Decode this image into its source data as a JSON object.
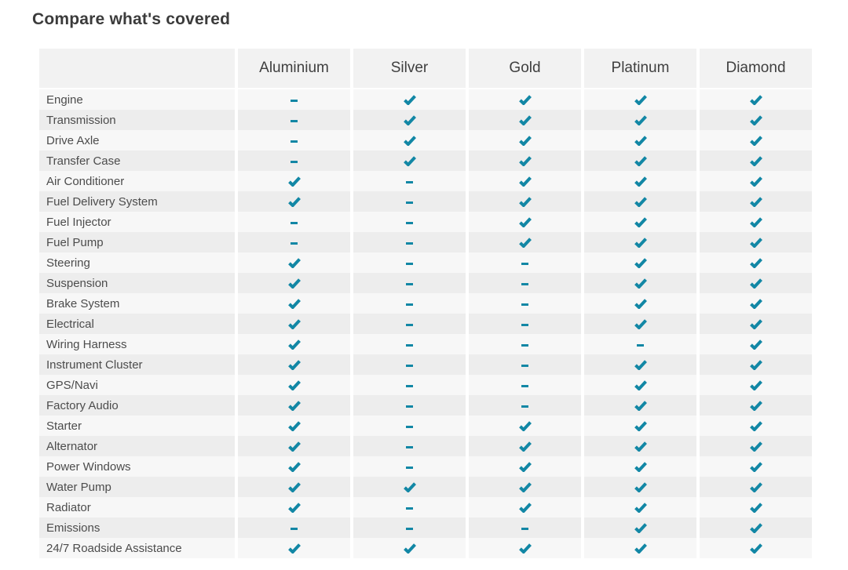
{
  "title": "Compare what's covered",
  "colors": {
    "accent_check": "#1287a5",
    "header_bg": "#f2f2f2",
    "row_odd_bg": "#f7f7f7",
    "row_even_bg": "#ededed",
    "title_text": "#3b3b3b",
    "header_text": "#3f3f3f",
    "label_text": "#4c4c4c"
  },
  "table": {
    "corner_header": "",
    "columns": [
      "Aluminium",
      "Silver",
      "Gold",
      "Platinum",
      "Diamond"
    ],
    "icons": {
      "covered": "check-icon",
      "not_covered": "dash-icon"
    },
    "rows": [
      {
        "label": "Engine",
        "covered": [
          false,
          true,
          true,
          true,
          true
        ]
      },
      {
        "label": "Transmission",
        "covered": [
          false,
          true,
          true,
          true,
          true
        ]
      },
      {
        "label": "Drive Axle",
        "covered": [
          false,
          true,
          true,
          true,
          true
        ]
      },
      {
        "label": "Transfer Case",
        "covered": [
          false,
          true,
          true,
          true,
          true
        ]
      },
      {
        "label": "Air Conditioner",
        "covered": [
          true,
          false,
          true,
          true,
          true
        ]
      },
      {
        "label": "Fuel Delivery System",
        "covered": [
          true,
          false,
          true,
          true,
          true
        ]
      },
      {
        "label": "Fuel Injector",
        "covered": [
          false,
          false,
          true,
          true,
          true
        ]
      },
      {
        "label": "Fuel Pump",
        "covered": [
          false,
          false,
          true,
          true,
          true
        ]
      },
      {
        "label": "Steering",
        "covered": [
          true,
          false,
          false,
          true,
          true
        ]
      },
      {
        "label": "Suspension",
        "covered": [
          true,
          false,
          false,
          true,
          true
        ]
      },
      {
        "label": "Brake System",
        "covered": [
          true,
          false,
          false,
          true,
          true
        ]
      },
      {
        "label": "Electrical",
        "covered": [
          true,
          false,
          false,
          true,
          true
        ]
      },
      {
        "label": "Wiring Harness",
        "covered": [
          true,
          false,
          false,
          false,
          true
        ]
      },
      {
        "label": "Instrument Cluster",
        "covered": [
          true,
          false,
          false,
          true,
          true
        ]
      },
      {
        "label": "GPS/Navi",
        "covered": [
          true,
          false,
          false,
          true,
          true
        ]
      },
      {
        "label": "Factory Audio",
        "covered": [
          true,
          false,
          false,
          true,
          true
        ]
      },
      {
        "label": "Starter",
        "covered": [
          true,
          false,
          true,
          true,
          true
        ]
      },
      {
        "label": "Alternator",
        "covered": [
          true,
          false,
          true,
          true,
          true
        ]
      },
      {
        "label": "Power Windows",
        "covered": [
          true,
          false,
          true,
          true,
          true
        ]
      },
      {
        "label": "Water Pump",
        "covered": [
          true,
          true,
          true,
          true,
          true
        ]
      },
      {
        "label": "Radiator",
        "covered": [
          true,
          false,
          true,
          true,
          true
        ]
      },
      {
        "label": "Emissions",
        "covered": [
          false,
          false,
          false,
          true,
          true
        ]
      },
      {
        "label": "24/7 Roadside Assistance",
        "covered": [
          true,
          true,
          true,
          true,
          true
        ]
      }
    ]
  }
}
